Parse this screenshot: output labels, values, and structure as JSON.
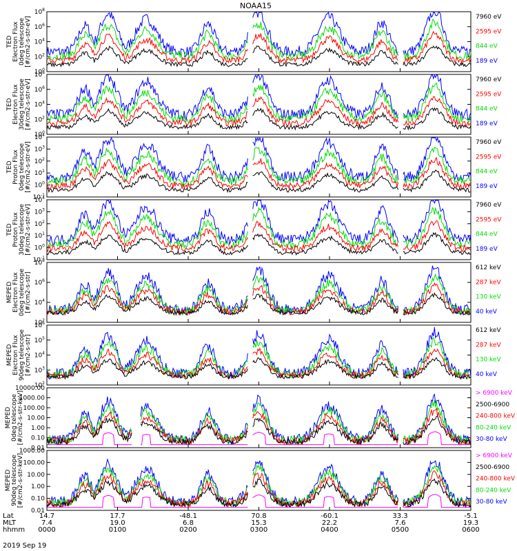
{
  "title": "NOAA15",
  "date_label": "2019 Sep 19",
  "colors": {
    "black": "#000000",
    "red": "#ff0000",
    "green": "#00dd00",
    "blue": "#0000ff",
    "magenta": "#ff00ff"
  },
  "chart_data": [
    {
      "type": "line",
      "ylabel": [
        "TED",
        "Electron Flux",
        "0deg telescope",
        "[#/cm2-s-str-eV]"
      ],
      "yscale": "log",
      "ylim": [
        1,
        100000000
      ],
      "yticks": [
        "10^0",
        "10^2",
        "10^4",
        "10^6",
        "10^8"
      ],
      "series": [
        {
          "name": "7960 eV",
          "color": "black"
        },
        {
          "name": "2595 eV",
          "color": "red"
        },
        {
          "name": "844 eV",
          "color": "green"
        },
        {
          "name": "189 eV",
          "color": "blue"
        }
      ],
      "y_min_fraction": 0.08
    },
    {
      "type": "line",
      "ylabel": [
        "TED",
        "Electron Flux",
        "30deg telescope",
        "[#/cm2-s-str-eV]"
      ],
      "yscale": "log",
      "ylim": [
        1,
        100000000
      ],
      "yticks": [
        "10^0",
        "10^2",
        "10^4",
        "10^6",
        "10^8"
      ],
      "series": [
        {
          "name": "7960 eV",
          "color": "black"
        },
        {
          "name": "2595 eV",
          "color": "red"
        },
        {
          "name": "844 eV",
          "color": "green"
        },
        {
          "name": "189 eV",
          "color": "blue"
        }
      ],
      "y_min_fraction": 0.08
    },
    {
      "type": "line",
      "ylabel": [
        "TED",
        "Proton Flux",
        "0deg telescope",
        "[#/cm2-s-str-eV]"
      ],
      "yscale": "log",
      "ylim": [
        0.1,
        10000
      ],
      "yticks": [
        "10^-1",
        "10^0",
        "10^1",
        "10^2",
        "10^3",
        "10^4"
      ],
      "series": [
        {
          "name": "7960 eV",
          "color": "black"
        },
        {
          "name": "2595 eV",
          "color": "red"
        },
        {
          "name": "844 eV",
          "color": "green"
        },
        {
          "name": "189 eV",
          "color": "blue"
        }
      ],
      "y_min_fraction": 0.08
    },
    {
      "type": "line",
      "ylabel": [
        "TED",
        "Proton Flux",
        "30deg telescope",
        "[#/cm2-s-str-eV]"
      ],
      "yscale": "log",
      "ylim": [
        0.1,
        10000
      ],
      "yticks": [
        "10^-1",
        "10^0",
        "10^1",
        "10^2",
        "10^3",
        "10^4"
      ],
      "series": [
        {
          "name": "7960 eV",
          "color": "black"
        },
        {
          "name": "2595 eV",
          "color": "red"
        },
        {
          "name": "844 eV",
          "color": "green"
        },
        {
          "name": "189 eV",
          "color": "blue"
        }
      ],
      "y_min_fraction": 0.08
    },
    {
      "type": "line",
      "ylabel": [
        "MEPED",
        "Electron Flux",
        "0deg telescope",
        "[#/cm2-s-str]"
      ],
      "yscale": "log",
      "ylim": [
        100,
        100000000
      ],
      "yticks": [
        "10^2",
        "10^4",
        "10^6",
        "10^8"
      ],
      "series": [
        {
          "name": "612 keV",
          "color": "black"
        },
        {
          "name": "287 keV",
          "color": "red"
        },
        {
          "name": "130 keV",
          "color": "green"
        },
        {
          "name": "40 keV",
          "color": "blue"
        }
      ],
      "y_min_fraction": 0.12
    },
    {
      "type": "line",
      "ylabel": [
        "MEPED",
        "Electron Flux",
        "90deg telescope",
        "[#/cm2-s-str]"
      ],
      "yscale": "log",
      "ylim": [
        100,
        1000000
      ],
      "yticks": [
        "10^2",
        "10^3",
        "10^4",
        "10^5",
        "10^6"
      ],
      "series": [
        {
          "name": "612 keV",
          "color": "black"
        },
        {
          "name": "287 keV",
          "color": "red"
        },
        {
          "name": "130 keV",
          "color": "green"
        },
        {
          "name": "40 keV",
          "color": "blue"
        }
      ],
      "y_min_fraction": 0.1
    },
    {
      "type": "line",
      "ylabel": [
        "MEPED",
        "0deg telescope",
        "[#/cm2-s-str-keV]"
      ],
      "yscale": "log",
      "ylim": [
        0.01,
        10000
      ],
      "yticks": [
        "0.01",
        "0.10",
        "1.00",
        "10.00",
        "100.00",
        "1000.00",
        "10000.00"
      ],
      "series": [
        {
          "name": "> 6900 keV",
          "color": "magenta"
        },
        {
          "name": "2500-6900",
          "color": "black"
        },
        {
          "name": "240-800 keV",
          "color": "red"
        },
        {
          "name": "80-240 keV",
          "color": "green"
        },
        {
          "name": "30-80 keV",
          "color": "blue"
        }
      ],
      "y_min_fraction": 0.05
    },
    {
      "type": "line",
      "ylabel": [
        "MEPED",
        "90deg telescope",
        "[#/cm2-s-str-keV]"
      ],
      "yscale": "log",
      "ylim": [
        0.01,
        1000
      ],
      "yticks": [
        "0.01",
        "0.10",
        "1.00",
        "10.00",
        "100.00",
        "1000.00"
      ],
      "series": [
        {
          "name": "> 6900 keV",
          "color": "magenta"
        },
        {
          "name": "2500-6900",
          "color": "black"
        },
        {
          "name": "240-800 keV",
          "color": "red"
        },
        {
          "name": "80-240 keV",
          "color": "green"
        },
        {
          "name": "30-80 keV",
          "color": "blue"
        }
      ],
      "y_min_fraction": 0.05
    }
  ],
  "x_axis": {
    "row_labels": [
      "Lat",
      "MLT",
      "hhmm"
    ],
    "ticks": [
      {
        "lat": "14.7",
        "mlt": "7.4",
        "hhmm": "0000"
      },
      {
        "lat": "17.7",
        "mlt": "19.0",
        "hhmm": "0100"
      },
      {
        "lat": "-48.1",
        "mlt": "6.8",
        "hhmm": "0200"
      },
      {
        "lat": "70.8",
        "mlt": "15.3",
        "hhmm": "0300"
      },
      {
        "lat": "-60.1",
        "mlt": "22.2",
        "hhmm": "0400"
      },
      {
        "lat": "33.3",
        "mlt": "7.6",
        "hhmm": "0500"
      },
      {
        "lat": "-5.1",
        "mlt": "19.3",
        "hhmm": "0600"
      }
    ]
  }
}
